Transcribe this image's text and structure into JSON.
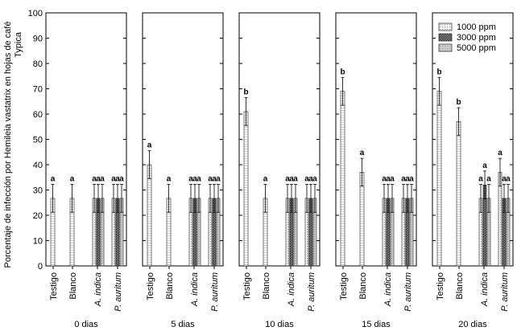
{
  "chart_data": {
    "type": "bar",
    "ylabel_line1": "Porcentaje de infección por Hemileia vastatrix en hojas de café",
    "ylabel_line2": "Typica",
    "ylim": [
      0,
      100
    ],
    "yticks": [
      0,
      10,
      20,
      30,
      40,
      50,
      60,
      70,
      80,
      90,
      100
    ],
    "grid": false,
    "legend_position": "top-right of last panel",
    "legend": [
      "1000 ppm",
      "3000 ppm",
      "5000 ppm"
    ],
    "categories": [
      "Testigo",
      "Blanco",
      "A. indica",
      "P. auritum"
    ],
    "panels": [
      {
        "title": "0 dias",
        "bars": [
          {
            "category": "Testigo",
            "series": "single",
            "value": 26.7,
            "error": 5.5,
            "letter": "a"
          },
          {
            "category": "Blanco",
            "series": "single",
            "value": 26.7,
            "error": 5.5,
            "letter": "a"
          },
          {
            "category": "A. indica",
            "series": "1000 ppm",
            "value": 26.7,
            "error": 5.5,
            "letter": "a"
          },
          {
            "category": "A. indica",
            "series": "3000 ppm",
            "value": 26.7,
            "error": 5.5,
            "letter": "a"
          },
          {
            "category": "A. indica",
            "series": "5000 ppm",
            "value": 26.7,
            "error": 5.5,
            "letter": "a"
          },
          {
            "category": "P. auritum",
            "series": "1000 ppm",
            "value": 26.7,
            "error": 5.5,
            "letter": "a"
          },
          {
            "category": "P. auritum",
            "series": "3000 ppm",
            "value": 26.7,
            "error": 5.5,
            "letter": "a"
          },
          {
            "category": "P. auritum",
            "series": "5000 ppm",
            "value": 26.7,
            "error": 5.5,
            "letter": "a"
          }
        ]
      },
      {
        "title": "5 dias",
        "bars": [
          {
            "category": "Testigo",
            "series": "single",
            "value": 40,
            "error": 5.5,
            "letter": "a"
          },
          {
            "category": "Blanco",
            "series": "single",
            "value": 26.7,
            "error": 5.5,
            "letter": "a"
          },
          {
            "category": "A. indica",
            "series": "1000 ppm",
            "value": 26.7,
            "error": 5.5,
            "letter": "a"
          },
          {
            "category": "A. indica",
            "series": "3000 ppm",
            "value": 26.7,
            "error": 5.5,
            "letter": "a"
          },
          {
            "category": "A. indica",
            "series": "5000 ppm",
            "value": 26.7,
            "error": 5.5,
            "letter": "a"
          },
          {
            "category": "P. auritum",
            "series": "1000 ppm",
            "value": 26.7,
            "error": 5.5,
            "letter": "a"
          },
          {
            "category": "P. auritum",
            "series": "3000 ppm",
            "value": 26.7,
            "error": 5.5,
            "letter": "a"
          },
          {
            "category": "P. auritum",
            "series": "5000 ppm",
            "value": 26.7,
            "error": 5.5,
            "letter": "a"
          }
        ]
      },
      {
        "title": "10 dias",
        "bars": [
          {
            "category": "Testigo",
            "series": "single",
            "value": 61,
            "error": 5.5,
            "letter": "b"
          },
          {
            "category": "Blanco",
            "series": "single",
            "value": 26.7,
            "error": 5.5,
            "letter": "a"
          },
          {
            "category": "A. indica",
            "series": "1000 ppm",
            "value": 26.7,
            "error": 5.5,
            "letter": "a"
          },
          {
            "category": "A. indica",
            "series": "3000 ppm",
            "value": 26.7,
            "error": 5.5,
            "letter": "a"
          },
          {
            "category": "A. indica",
            "series": "5000 ppm",
            "value": 26.7,
            "error": 5.5,
            "letter": "a"
          },
          {
            "category": "P. auritum",
            "series": "1000 ppm",
            "value": 26.7,
            "error": 5.5,
            "letter": "a"
          },
          {
            "category": "P. auritum",
            "series": "3000 ppm",
            "value": 26.7,
            "error": 5.5,
            "letter": "a"
          },
          {
            "category": "P. auritum",
            "series": "5000 ppm",
            "value": 26.7,
            "error": 5.5,
            "letter": "a"
          }
        ]
      },
      {
        "title": "15 dias",
        "bars": [
          {
            "category": "Testigo",
            "series": "single",
            "value": 69,
            "error": 5.5,
            "letter": "b"
          },
          {
            "category": "Blanco",
            "series": "single",
            "value": 37,
            "error": 5.5,
            "letter": "a"
          },
          {
            "category": "A. indica",
            "series": "1000 ppm",
            "value": 26.7,
            "error": 5.5,
            "letter": "a"
          },
          {
            "category": "A. indica",
            "series": "3000 ppm",
            "value": 26.7,
            "error": 5.5,
            "letter": "a"
          },
          {
            "category": "A. indica",
            "series": "5000 ppm",
            "value": 26.7,
            "error": 5.5,
            "letter": "a"
          },
          {
            "category": "P. auritum",
            "series": "1000 ppm",
            "value": 26.7,
            "error": 5.5,
            "letter": "a"
          },
          {
            "category": "P. auritum",
            "series": "3000 ppm",
            "value": 26.7,
            "error": 5.5,
            "letter": "a"
          },
          {
            "category": "P. auritum",
            "series": "5000 ppm",
            "value": 26.7,
            "error": 5.5,
            "letter": "a"
          }
        ]
      },
      {
        "title": "20 dias",
        "bars": [
          {
            "category": "Testigo",
            "series": "single",
            "value": 69,
            "error": 5.5,
            "letter": "b"
          },
          {
            "category": "Blanco",
            "series": "single",
            "value": 57,
            "error": 5.5,
            "letter": "b"
          },
          {
            "category": "A. indica",
            "series": "1000 ppm",
            "value": 26.7,
            "error": 5.5,
            "letter": "a"
          },
          {
            "category": "A. indica",
            "series": "3000 ppm",
            "value": 32,
            "error": 5.5,
            "letter": "a"
          },
          {
            "category": "A. indica",
            "series": "5000 ppm",
            "value": 26.7,
            "error": 5.5,
            "letter": "a"
          },
          {
            "category": "P. auritum",
            "series": "1000 ppm",
            "value": 37,
            "error": 5.5,
            "letter": "a"
          },
          {
            "category": "P. auritum",
            "series": "3000 ppm",
            "value": 26.7,
            "error": 5.5,
            "letter": "a"
          },
          {
            "category": "P. auritum",
            "series": "5000 ppm",
            "value": 26.7,
            "error": 5.5,
            "letter": "a"
          }
        ]
      }
    ]
  }
}
